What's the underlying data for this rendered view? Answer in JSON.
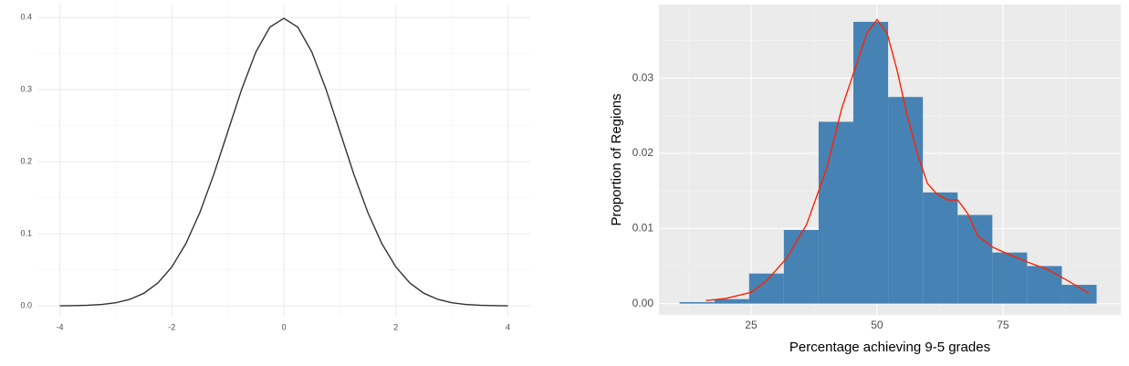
{
  "chart_data": [
    {
      "type": "line",
      "x": [
        -4,
        -3.75,
        -3.5,
        -3.25,
        -3,
        -2.75,
        -2.5,
        -2.25,
        -2,
        -1.75,
        -1.5,
        -1.25,
        -1,
        -0.75,
        -0.5,
        -0.25,
        0,
        0.25,
        0.5,
        0.75,
        1,
        1.25,
        1.5,
        1.75,
        2,
        2.25,
        2.5,
        2.75,
        3,
        3.25,
        3.5,
        3.75,
        4
      ],
      "values": [
        0.0001,
        0.0004,
        0.0009,
        0.002,
        0.0044,
        0.0091,
        0.0175,
        0.0317,
        0.054,
        0.0863,
        0.1295,
        0.1826,
        0.242,
        0.3011,
        0.3521,
        0.3867,
        0.3989,
        0.3867,
        0.3521,
        0.3011,
        0.242,
        0.1826,
        0.1295,
        0.0863,
        0.054,
        0.0317,
        0.0175,
        0.0091,
        0.0044,
        0.002,
        0.0009,
        0.0004,
        0.0001
      ],
      "color": "#333333",
      "xlim": [
        -4.4,
        4.4
      ],
      "xticks": [
        -4,
        -2,
        0,
        2,
        4
      ],
      "x_minor_ticks": [
        -3,
        -1,
        1,
        3
      ],
      "ylim": [
        -0.015,
        0.418
      ],
      "yticks": [
        {
          "value": 0,
          "label": "0.0"
        },
        0.1,
        0.2,
        0.3,
        0.4
      ],
      "y_minor_ticks": [
        0.05,
        0.15,
        0.25,
        0.35
      ],
      "grid": true
    },
    {
      "type": "histogram",
      "x_label": "Percentage achieving 9-5 grades",
      "y_label": "Proportion of Regions",
      "bins": [
        10.8,
        17.7,
        24.6,
        31.5,
        38.4,
        45.3,
        52.2,
        59.1,
        66.0,
        72.9,
        79.8,
        86.7,
        93.6
      ],
      "values": [
        0.0002,
        0.0006,
        0.004,
        0.0098,
        0.0242,
        0.0375,
        0.0275,
        0.0148,
        0.0118,
        0.0068,
        0.005,
        0.0025
      ],
      "color": "#4682b4",
      "density": {
        "x": [
          16,
          20,
          25,
          28,
          32,
          36,
          40,
          43,
          46,
          48,
          50,
          52,
          54,
          56,
          58,
          60,
          62,
          64,
          66,
          68,
          70,
          73,
          76,
          80,
          84,
          88,
          92
        ],
        "values": [
          0.0004,
          0.0007,
          0.0015,
          0.003,
          0.006,
          0.0105,
          0.018,
          0.026,
          0.032,
          0.036,
          0.0378,
          0.036,
          0.031,
          0.025,
          0.02,
          0.016,
          0.0145,
          0.0138,
          0.0138,
          0.012,
          0.009,
          0.0075,
          0.0066,
          0.0055,
          0.0045,
          0.003,
          0.0014
        ],
        "color": "#ff2200"
      },
      "xlim": [
        6.7,
        98.4
      ],
      "xticks": [
        25,
        50,
        75
      ],
      "x_minor_ticks": [
        12.5,
        37.5,
        62.5,
        87.5
      ],
      "ylim": [
        -0.0015,
        0.0398
      ],
      "yticks": [
        {
          "value": 0,
          "label": "0.00"
        },
        {
          "value": 0.01,
          "label": "0.01"
        },
        {
          "value": 0.02,
          "label": "0.02"
        },
        {
          "value": 0.03,
          "label": "0.03"
        }
      ],
      "y_minor_ticks": [
        0.005,
        0.015,
        0.025,
        0.035
      ],
      "grid": true
    }
  ]
}
